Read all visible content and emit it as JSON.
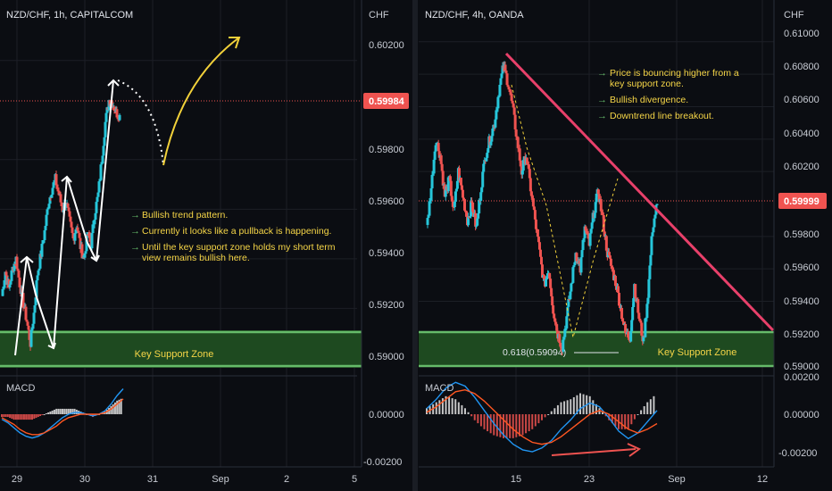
{
  "colors": {
    "background": "#0b0d12",
    "grid": "#1c1f26",
    "divider": "#2a2e39",
    "candle_up": "#26c6da",
    "candle_down": "#ef5350",
    "price_line": "#ef5350",
    "price_label_bg": "#ef5350",
    "support_fill": "#1e4a20",
    "support_border": "#66bb6a",
    "note_text": "#f5d547",
    "note_arrow": "#66bb6a",
    "trend_line": "#e8406a",
    "drawing_white": "#ffffff",
    "projection_yellow": "#f2d13a",
    "macd_line": "#2196f3",
    "signal_line": "#ff5722",
    "axis_text": "#c8ccd4"
  },
  "panels": [
    {
      "title": "NZD/CHF, 1h, CAPITALCOM",
      "axis_unit": "CHF",
      "price_ticks": [
        "0.60200",
        "0.59800",
        "0.59600",
        "0.59400",
        "0.59200",
        "0.59000"
      ],
      "last_price_label": "0.59984",
      "x_ticks": [
        "29",
        "30",
        "31",
        "Sep",
        "2",
        "5"
      ],
      "support_label": "Key Support Zone",
      "notes": [
        "Bullish trend pattern.",
        "Currently it looks like a pullback is happening.",
        "Until the key support zone holds my short term view remains bullish here."
      ],
      "indicator": {
        "name": "MACD",
        "ticks": [
          "0.00000",
          "-0.00200"
        ]
      }
    },
    {
      "title": "NZD/CHF, 4h, OANDA",
      "axis_unit": "CHF",
      "price_ticks": [
        "0.61000",
        "0.60800",
        "0.60600",
        "0.60400",
        "0.60200",
        "0.59800",
        "0.59600",
        "0.59400",
        "0.59200",
        "0.59000"
      ],
      "last_price_label": "0.59999",
      "x_ticks": [
        "15",
        "23",
        "Sep",
        "12"
      ],
      "support_label": "Key Support Zone",
      "fib_label": "0.618(0.59094)",
      "notes": [
        "Price is bouncing higher from a key support zone.",
        "Bullish divergence.",
        "Downtrend line breakout."
      ],
      "indicator": {
        "name": "MACD",
        "ticks": [
          "0.00200",
          "0.00000",
          "-0.00200"
        ]
      }
    }
  ],
  "chart_data": [
    {
      "type": "candlestick",
      "title": "NZD/CHF, 1h, CAPITALCOM",
      "ylabel": "CHF",
      "ylim": [
        0.5896,
        0.603
      ],
      "x_ticks": [
        "29",
        "30",
        "31",
        "Sep",
        "2",
        "5"
      ],
      "close_path": [
        0.5925,
        0.5935,
        0.5928,
        0.5936,
        0.594,
        0.593,
        0.5922,
        0.5915,
        0.5906,
        0.5918,
        0.5934,
        0.5942,
        0.5951,
        0.5962,
        0.5968,
        0.5972,
        0.5966,
        0.596,
        0.5963,
        0.5955,
        0.5948,
        0.5954,
        0.5945,
        0.594,
        0.595,
        0.5946,
        0.5958,
        0.5966,
        0.598,
        0.5995,
        0.6004,
        0.6003,
        0.5999,
        0.5998
      ],
      "last_price": 0.59984,
      "support_zone": [
        0.5898,
        0.5911
      ],
      "projection_low": 0.5973,
      "projection_target": 0.6022,
      "macd": {
        "macd_line": [
          -0.0003,
          -0.0005,
          -0.0008,
          -0.0011,
          -0.0013,
          -0.0014,
          -0.0013,
          -0.0011,
          -0.0008,
          -0.0005,
          -0.0002,
          0.0,
          0.0001,
          0.0001,
          0.0,
          -0.0001,
          0.0,
          0.0002,
          0.0006,
          0.0011,
          0.0015
        ],
        "signal_line": [
          -0.0002,
          -0.0004,
          -0.0006,
          -0.0009,
          -0.0011,
          -0.0012,
          -0.0012,
          -0.0011,
          -0.0009,
          -0.0007,
          -0.0004,
          -0.0002,
          -0.0001,
          0.0,
          0.0,
          0.0,
          0.0,
          0.0001,
          0.0003,
          0.0006,
          0.0009
        ]
      }
    },
    {
      "type": "candlestick",
      "title": "NZD/CHF, 4h, OANDA",
      "ylabel": "CHF",
      "ylim": [
        0.5899,
        0.6112
      ],
      "x_ticks": [
        "15",
        "23",
        "Sep",
        "12"
      ],
      "close_path": [
        0.5985,
        0.601,
        0.604,
        0.603,
        0.6005,
        0.6015,
        0.5995,
        0.602,
        0.6005,
        0.599,
        0.6,
        0.5985,
        0.601,
        0.603,
        0.604,
        0.605,
        0.607,
        0.6085,
        0.6075,
        0.606,
        0.604,
        0.602,
        0.603,
        0.601,
        0.599,
        0.597,
        0.595,
        0.596,
        0.5935,
        0.592,
        0.5912,
        0.593,
        0.595,
        0.597,
        0.596,
        0.5985,
        0.5975,
        0.5995,
        0.6008,
        0.599,
        0.597,
        0.596,
        0.595,
        0.5935,
        0.592,
        0.5918,
        0.595,
        0.593,
        0.5915,
        0.5945,
        0.5985,
        0.6
      ],
      "last_price": 0.59999,
      "support_zone": [
        0.5901,
        0.5921
      ],
      "fib_level": 0.59094,
      "downtrend_line": {
        "start": 0.6087,
        "end": 0.592
      },
      "macd": {
        "macd_line": [
          0.0003,
          0.0008,
          0.0014,
          0.0017,
          0.0015,
          0.0009,
          0.0002,
          -0.0005,
          -0.0011,
          -0.0016,
          -0.0019,
          -0.002,
          -0.0018,
          -0.0014,
          -0.0008,
          -0.0003,
          0.0003,
          0.0006,
          0.0004,
          -0.0002,
          -0.0009,
          -0.0013,
          -0.001,
          -0.0004,
          0.0002
        ],
        "signal_line": [
          0.0001,
          0.0004,
          0.0008,
          0.0012,
          0.0013,
          0.0011,
          0.0007,
          0.0002,
          -0.0003,
          -0.0008,
          -0.0012,
          -0.0015,
          -0.0016,
          -0.0015,
          -0.0012,
          -0.0008,
          -0.0004,
          0.0,
          0.0002,
          0.0,
          -0.0004,
          -0.0008,
          -0.001,
          -0.0008,
          -0.0005
        ]
      }
    }
  ]
}
